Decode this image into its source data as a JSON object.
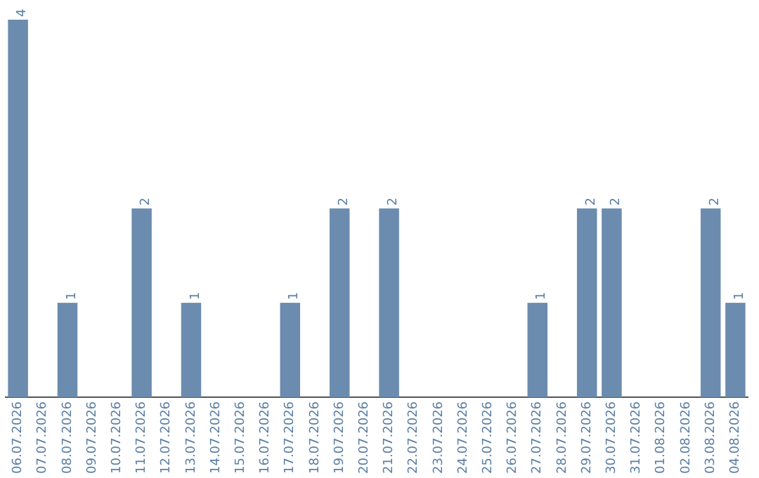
{
  "chart_data": {
    "type": "bar",
    "categories": [
      "06.07.2026",
      "07.07.2026",
      "08.07.2026",
      "09.07.2026",
      "10.07.2026",
      "11.07.2026",
      "12.07.2026",
      "13.07.2026",
      "14.07.2026",
      "15.07.2026",
      "16.07.2026",
      "17.07.2026",
      "18.07.2026",
      "19.07.2026",
      "20.07.2026",
      "21.07.2026",
      "22.07.2026",
      "23.07.2026",
      "24.07.2026",
      "25.07.2026",
      "26.07.2026",
      "27.07.2026",
      "28.07.2026",
      "29.07.2026",
      "30.07.2026",
      "31.07.2026",
      "01.08.2026",
      "02.08.2026",
      "03.08.2026",
      "04.08.2026"
    ],
    "values": [
      4,
      0,
      1,
      0,
      0,
      2,
      0,
      1,
      0,
      0,
      0,
      1,
      0,
      2,
      0,
      2,
      0,
      0,
      0,
      0,
      0,
      1,
      0,
      2,
      2,
      0,
      0,
      0,
      2,
      1
    ],
    "value_labels": [
      "4",
      null,
      "1",
      null,
      null,
      "2",
      null,
      "1",
      null,
      null,
      null,
      "1",
      null,
      "2",
      null,
      "2",
      null,
      null,
      null,
      null,
      null,
      "1",
      null,
      "2",
      "2",
      null,
      null,
      null,
      "2",
      "1"
    ],
    "color": "#6b8cae",
    "grid": false,
    "legend": false,
    "tick_labels": "x"
  }
}
